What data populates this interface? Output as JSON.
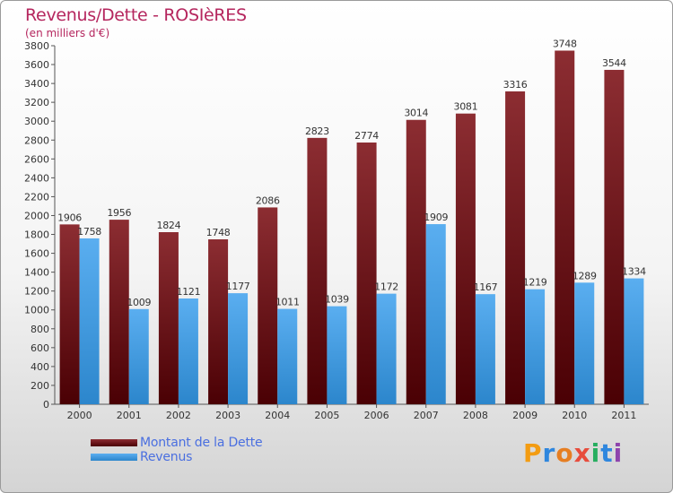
{
  "title": "Revenus/Dette - ROSIèRES",
  "subtitle": "(en milliers d'€)",
  "chart_data": {
    "type": "bar",
    "categories": [
      "2000",
      "2001",
      "2002",
      "2003",
      "2004",
      "2005",
      "2006",
      "2007",
      "2008",
      "2009",
      "2010",
      "2011"
    ],
    "series": [
      {
        "name": "Montant de la Dette",
        "color": "#7a1a1e",
        "values": [
          1906,
          1956,
          1824,
          1748,
          2086,
          2823,
          2774,
          3014,
          3081,
          3316,
          3748,
          3544
        ]
      },
      {
        "name": "Revenus",
        "color": "#3f9fe2",
        "values": [
          1758,
          1009,
          1121,
          1177,
          1011,
          1039,
          1172,
          1909,
          1167,
          1219,
          1289,
          1334
        ]
      }
    ],
    "ylim": [
      0,
      3800
    ],
    "ytick_step": 200,
    "grid": false,
    "legend_position": "bottom-left"
  },
  "logo": {
    "letters": [
      "P",
      "r",
      "o",
      "x",
      "i",
      "t",
      "i"
    ],
    "colors": [
      "#f39c12",
      "#2e86de",
      "#e67e22",
      "#e74c3c",
      "#27ae60",
      "#2e86de",
      "#8e44ad"
    ]
  }
}
